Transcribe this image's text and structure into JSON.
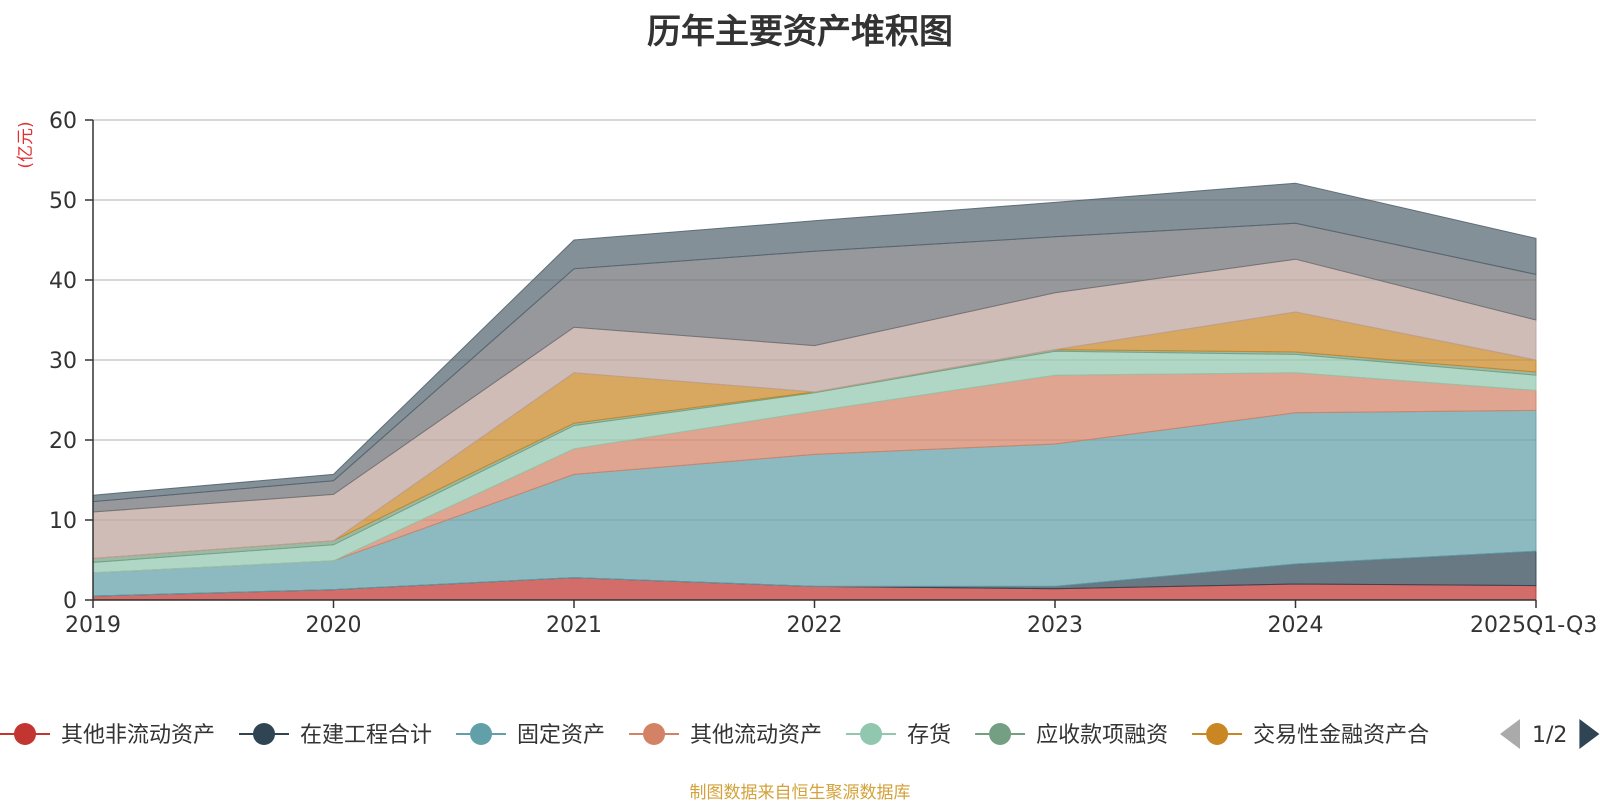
{
  "chart_data": {
    "type": "area",
    "stacked": true,
    "title": "历年主要资产堆积图",
    "ylabel": "(亿元)",
    "xlabel": "",
    "ylim": [
      0,
      60
    ],
    "yticks": [
      0,
      10,
      20,
      30,
      40,
      50,
      60
    ],
    "grid": true,
    "categories": [
      "2019",
      "2020",
      "2021",
      "2022",
      "2023",
      "2024",
      "2025Q1-Q3"
    ],
    "series": [
      {
        "name": "其他非流动资产",
        "color": "#c23531",
        "values": [
          0.5,
          1.3,
          2.8,
          1.7,
          1.4,
          2.0,
          1.8
        ],
        "in_legend": true
      },
      {
        "name": "在建工程合计",
        "color": "#2f4554",
        "values": [
          0.0,
          0.0,
          0.0,
          0.0,
          0.3,
          2.5,
          4.3
        ],
        "in_legend": true
      },
      {
        "name": "固定资产",
        "color": "#61a0a8",
        "values": [
          2.9,
          3.6,
          12.9,
          16.5,
          17.8,
          18.9,
          17.6
        ],
        "in_legend": true
      },
      {
        "name": "其他流动资产",
        "color": "#d48265",
        "values": [
          0.0,
          0.0,
          3.2,
          5.4,
          8.6,
          5.0,
          2.5
        ],
        "in_legend": true
      },
      {
        "name": "存货",
        "color": "#91c7ae",
        "values": [
          1.3,
          2.0,
          2.9,
          2.3,
          3.0,
          2.3,
          1.9
        ],
        "in_legend": true
      },
      {
        "name": "应收款项融资",
        "color": "#749f83",
        "values": [
          0.5,
          0.5,
          0.3,
          0.1,
          0.2,
          0.3,
          0.4
        ],
        "in_legend": true
      },
      {
        "name": "交易性金融资产合",
        "color": "#ca8622",
        "values": [
          0.0,
          0.0,
          6.3,
          0.0,
          0.0,
          5.0,
          1.5
        ],
        "in_legend": true
      },
      {
        "name": "",
        "color": "#bda29a",
        "values": [
          5.8,
          5.8,
          5.7,
          5.8,
          7.1,
          6.6,
          5.0
        ],
        "in_legend": false
      },
      {
        "name": "",
        "color": "#6e7074",
        "values": [
          1.3,
          1.7,
          7.3,
          11.8,
          7.0,
          4.5,
          5.7
        ],
        "in_legend": false
      },
      {
        "name": "",
        "color": "#546570",
        "values": [
          0.8,
          0.8,
          3.6,
          3.8,
          4.3,
          5.0,
          4.5
        ],
        "in_legend": false
      }
    ]
  },
  "legend": {
    "page_indicator": "1/2",
    "prev_color": "#aaaaaa",
    "next_color": "#2f4554"
  },
  "footer": {
    "note": "制图数据来自恒生聚源数据库"
  }
}
